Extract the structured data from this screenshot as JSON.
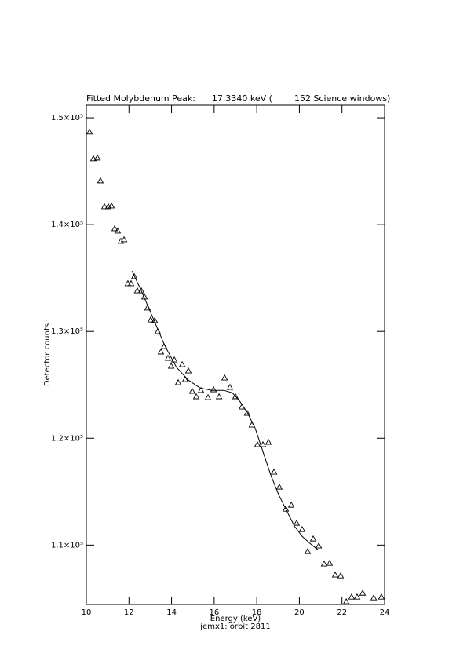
{
  "chart_data": {
    "type": "scatter",
    "title": "Fitted Molybdenum Peak:      17.3340 keV (        152 Science windows)",
    "xlabel": "Energy (keV)",
    "subtitle": "jemx1: orbit 2811",
    "ylabel": "Detector counts",
    "xlim": [
      10,
      24
    ],
    "ylim": [
      104440,
      151180
    ],
    "xticks": [
      10,
      12,
      14,
      16,
      18,
      20,
      22,
      24
    ],
    "yticks": [
      {
        "value": 110000,
        "label": "1.1×10⁵"
      },
      {
        "value": 120000,
        "label": "1.2×10⁵"
      },
      {
        "value": 130000,
        "label": "1.3×10⁵"
      },
      {
        "value": 140000,
        "label": "1.4×10⁵"
      },
      {
        "value": 150000,
        "label": "1.5×10⁵"
      }
    ],
    "color": "#000000",
    "points": {
      "x": [
        10.15,
        10.33,
        10.52,
        10.66,
        10.85,
        11.03,
        11.18,
        11.33,
        11.47,
        11.62,
        11.77,
        11.95,
        12.1,
        12.25,
        12.39,
        12.58,
        12.73,
        12.87,
        13.02,
        13.21,
        13.35,
        13.5,
        13.65,
        13.83,
        13.98,
        14.13,
        14.31,
        14.5,
        14.64,
        14.79,
        14.97,
        15.16,
        15.38,
        15.71,
        15.97,
        16.23,
        16.49,
        16.74,
        17.0,
        17.3,
        17.55,
        17.77,
        18.03,
        18.29,
        18.55,
        18.81,
        19.06,
        19.36,
        19.62,
        19.87,
        20.13,
        20.39,
        20.65,
        20.91,
        21.16,
        21.42,
        21.68,
        21.94,
        22.2,
        22.45,
        22.71,
        22.97,
        23.49,
        23.85
      ],
      "y": [
        148680,
        146180,
        146250,
        144120,
        141690,
        141690,
        141760,
        139630,
        139410,
        138460,
        138600,
        134490,
        134490,
        135150,
        133820,
        133820,
        133240,
        132210,
        131100,
        131030,
        130000,
        128090,
        128600,
        127500,
        126760,
        127350,
        125220,
        126910,
        125510,
        126320,
        124410,
        123900,
        124490,
        123820,
        124560,
        123900,
        125660,
        124780,
        123900,
        122940,
        122350,
        121250,
        119410,
        119410,
        119630,
        116840,
        115440,
        113380,
        113750,
        112060,
        111470,
        109410,
        110590,
        109930,
        108240,
        108310,
        107210,
        107130,
        104710,
        105150,
        105150,
        105510,
        105070,
        105150
      ]
    },
    "fit": {
      "x": [
        12.14,
        12.58,
        13.13,
        13.68,
        14.24,
        14.79,
        15.34,
        15.9,
        16.45,
        16.85,
        17.18,
        17.55,
        17.92,
        18.29,
        18.66,
        19.03,
        19.4,
        19.77,
        20.13,
        20.5,
        20.87
      ],
      "y": [
        135660,
        133820,
        131250,
        128680,
        126620,
        125440,
        124710,
        124490,
        124490,
        124260,
        123530,
        122430,
        120960,
        118750,
        116540,
        114710,
        113240,
        111760,
        110810,
        110150,
        109560
      ]
    }
  }
}
